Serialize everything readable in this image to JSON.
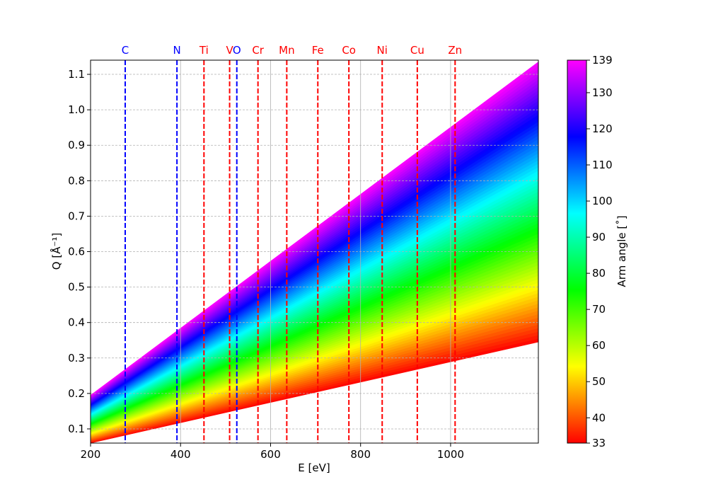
{
  "chart_data": {
    "type": "heatmap",
    "title": "",
    "xlabel": "E [eV]",
    "ylabel": "Q [Å⁻¹]",
    "xlim": [
      200,
      1195
    ],
    "ylim": [
      0.06,
      1.14
    ],
    "xticks": [
      200,
      400,
      600,
      800,
      1000
    ],
    "yticks": [
      0.1,
      0.2,
      0.3,
      0.4,
      0.5,
      0.6,
      0.7,
      0.8,
      0.9,
      1.0,
      1.1
    ],
    "xtick_labels": [
      "200",
      "400",
      "600",
      "800",
      "1000"
    ],
    "ytick_labels": [
      "0.1",
      "0.2",
      "0.3",
      "0.4",
      "0.5",
      "0.6",
      "0.7",
      "0.8",
      "0.9",
      "1.0",
      "1.1"
    ],
    "grid": true,
    "region": {
      "description_source": "colored wedge bounded by min and max arm angle",
      "lower_boundary": [
        [
          200,
          0.06
        ],
        [
          1195,
          0.345
        ]
      ],
      "upper_boundary": [
        [
          200,
          0.195
        ],
        [
          1195,
          1.135
        ]
      ]
    },
    "colorbar": {
      "label": "Arm angle [˚]",
      "min": 33,
      "max": 139,
      "ticks": [
        33,
        40,
        50,
        60,
        70,
        80,
        90,
        100,
        110,
        120,
        130,
        139
      ],
      "tick_labels": [
        "33",
        "40",
        "50",
        "60",
        "70",
        "80",
        "90",
        "100",
        "110",
        "120",
        "130",
        "139"
      ],
      "colormap": "gist_rainbow_reversed"
    },
    "edges": [
      {
        "label": "C",
        "energy": 277,
        "color": "#0000ff"
      },
      {
        "label": "N",
        "energy": 392,
        "color": "#0000ff"
      },
      {
        "label": "Ti",
        "energy": 452,
        "color": "#ff0000"
      },
      {
        "label": "V",
        "energy": 509,
        "color": "#ff0000"
      },
      {
        "label": "O",
        "energy": 525,
        "color": "#0000ff"
      },
      {
        "label": "Cr",
        "energy": 572,
        "color": "#ff0000"
      },
      {
        "label": "Mn",
        "energy": 636,
        "color": "#ff0000"
      },
      {
        "label": "Fe",
        "energy": 705,
        "color": "#ff0000"
      },
      {
        "label": "Co",
        "energy": 774,
        "color": "#ff0000"
      },
      {
        "label": "Ni",
        "energy": 848,
        "color": "#ff0000"
      },
      {
        "label": "Cu",
        "energy": 926,
        "color": "#ff0000"
      },
      {
        "label": "Zn",
        "energy": 1010,
        "color": "#ff0000"
      }
    ]
  }
}
